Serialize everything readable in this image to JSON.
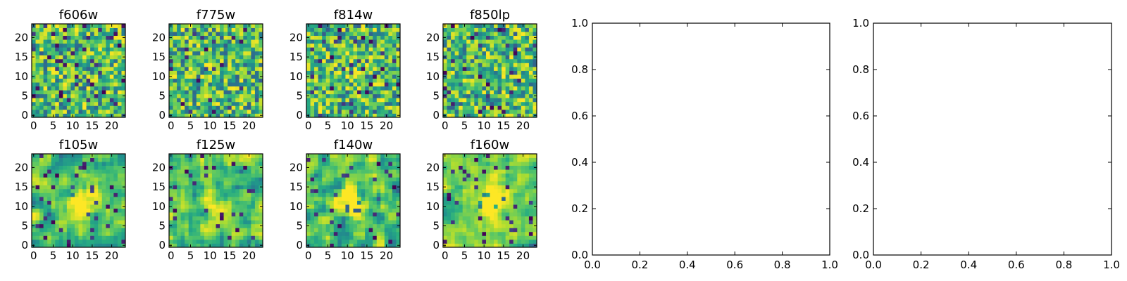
{
  "figure": {
    "image_panels_row1": [
      "f606w",
      "f775w",
      "f814w",
      "f850lp"
    ],
    "image_panels_row2": [
      "f105w",
      "f125w",
      "f140w",
      "f160w"
    ]
  },
  "chart_data": [
    {
      "type": "heatmap",
      "title": "f606w",
      "size": [
        24,
        24
      ],
      "xticks": [
        0,
        5,
        10,
        15,
        20
      ],
      "yticks": [
        0,
        5,
        10,
        15,
        20
      ],
      "colormap": "viridis",
      "seed": 11,
      "smoothness": 0,
      "peak": 0
    },
    {
      "type": "heatmap",
      "title": "f775w",
      "size": [
        24,
        24
      ],
      "xticks": [
        0,
        5,
        10,
        15,
        20
      ],
      "yticks": [
        0,
        5,
        10,
        15,
        20
      ],
      "colormap": "viridis",
      "seed": 23,
      "smoothness": 0,
      "peak": 0.1
    },
    {
      "type": "heatmap",
      "title": "f814w",
      "size": [
        24,
        24
      ],
      "xticks": [
        0,
        5,
        10,
        15,
        20
      ],
      "yticks": [
        0,
        5,
        10,
        15,
        20
      ],
      "colormap": "viridis",
      "seed": 37,
      "smoothness": 0,
      "peak": 0.1
    },
    {
      "type": "heatmap",
      "title": "f850lp",
      "size": [
        24,
        24
      ],
      "xticks": [
        0,
        5,
        10,
        15,
        20
      ],
      "yticks": [
        0,
        5,
        10,
        15,
        20
      ],
      "colormap": "viridis",
      "seed": 41,
      "smoothness": 0,
      "peak": 0
    },
    {
      "type": "heatmap",
      "title": "f105w",
      "size": [
        24,
        24
      ],
      "xticks": [
        0,
        5,
        10,
        15,
        20
      ],
      "yticks": [
        0,
        5,
        10,
        15,
        20
      ],
      "colormap": "viridis",
      "seed": 53,
      "smoothness": 1,
      "peak": 0.5
    },
    {
      "type": "heatmap",
      "title": "f125w",
      "size": [
        24,
        24
      ],
      "xticks": [
        0,
        5,
        10,
        15,
        20
      ],
      "yticks": [
        0,
        5,
        10,
        15,
        20
      ],
      "colormap": "viridis",
      "seed": 67,
      "smoothness": 1,
      "peak": 0.2
    },
    {
      "type": "heatmap",
      "title": "f140w",
      "size": [
        24,
        24
      ],
      "xticks": [
        0,
        5,
        10,
        15,
        20
      ],
      "yticks": [
        0,
        5,
        10,
        15,
        20
      ],
      "colormap": "viridis",
      "seed": 79,
      "smoothness": 1,
      "peak": 0.5
    },
    {
      "type": "heatmap",
      "title": "f160w",
      "size": [
        24,
        24
      ],
      "xticks": [
        0,
        5,
        10,
        15,
        20
      ],
      "yticks": [
        0,
        5,
        10,
        15,
        20
      ],
      "colormap": "viridis",
      "seed": 83,
      "smoothness": 1,
      "peak": 0.7
    },
    {
      "type": "scatter",
      "title": "",
      "xlim": [
        0.0,
        1.0
      ],
      "ylim": [
        0.0,
        1.0
      ],
      "xticks": [
        "0.0",
        "0.2",
        "0.4",
        "0.6",
        "0.8",
        "1.0"
      ],
      "yticks": [
        "0.0",
        "0.2",
        "0.4",
        "0.6",
        "0.8",
        "1.0"
      ],
      "series": []
    },
    {
      "type": "scatter",
      "title": "",
      "xlim": [
        0.0,
        1.0
      ],
      "ylim": [
        0.0,
        1.0
      ],
      "xticks": [
        "0.0",
        "0.2",
        "0.4",
        "0.6",
        "0.8",
        "1.0"
      ],
      "yticks": [
        "0.0",
        "0.2",
        "0.4",
        "0.6",
        "0.8",
        "1.0"
      ],
      "series": []
    }
  ]
}
